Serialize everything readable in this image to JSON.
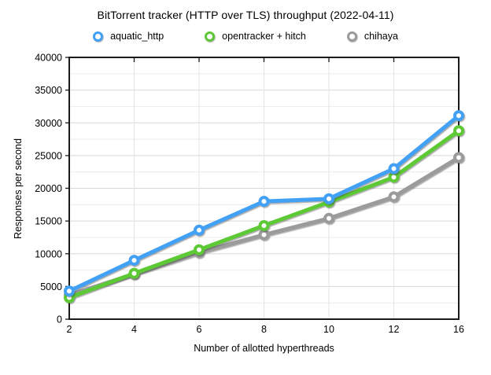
{
  "title": "BitTorrent tracker (HTTP over TLS) throughput (2022-04-11)",
  "chart_data": {
    "type": "line",
    "title": "BitTorrent tracker (HTTP over TLS) throughput (2022-04-11)",
    "xlabel": "Number of allotted hyperthreads",
    "ylabel": "Responses per second",
    "categories": [
      2,
      4,
      6,
      8,
      10,
      12,
      16
    ],
    "ylim": [
      0,
      40000
    ],
    "y_major_step": 5000,
    "y_minor_step": 2500,
    "grid": true,
    "legend_position": "top",
    "marker": "ring",
    "colors": {
      "axis": "#1a1a1a",
      "major_grid": "#d8d8d8",
      "minor_grid": "#ececec",
      "vertical_grid": "#e4e4e4"
    },
    "series": [
      {
        "name": "aquatic_http",
        "color": "#42A1F5",
        "values": [
          4300,
          9000,
          13600,
          18000,
          18400,
          23000,
          31100
        ]
      },
      {
        "name": "opentracker + hitch",
        "color": "#5DC936",
        "values": [
          3300,
          7000,
          10600,
          14300,
          17900,
          21700,
          28800
        ]
      },
      {
        "name": "chihaya",
        "color": "#9B9B9B",
        "values": [
          3700,
          6900,
          10200,
          12900,
          15400,
          18700,
          24700
        ]
      }
    ]
  }
}
